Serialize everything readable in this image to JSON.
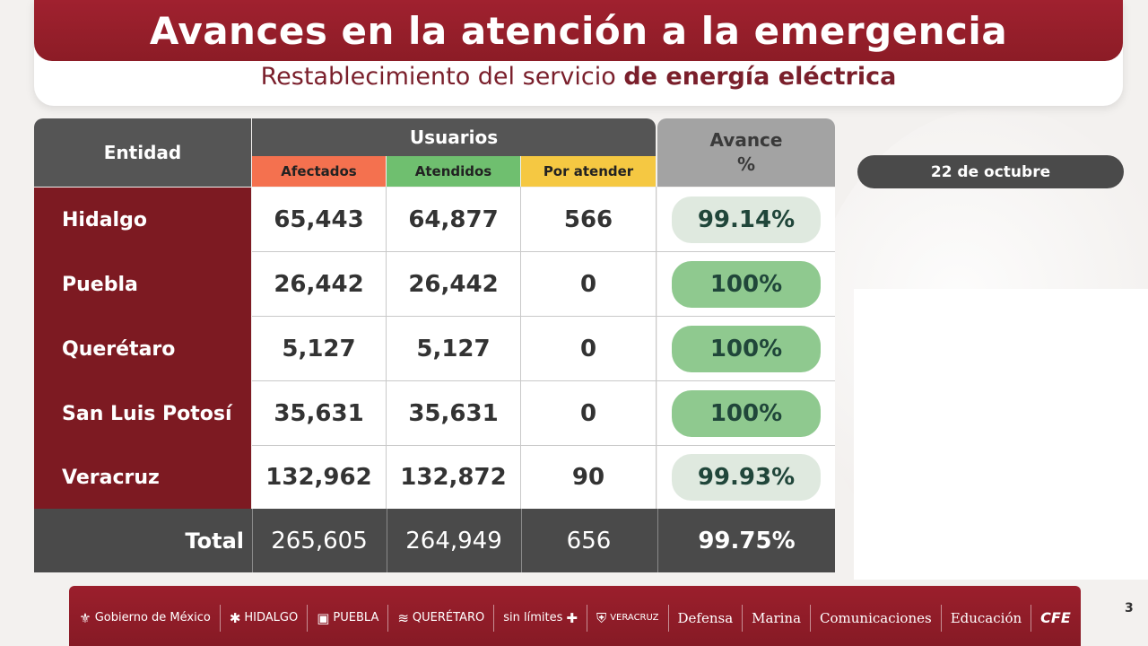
{
  "header": {
    "title": "Avances en la atención a la emergencia",
    "subtitle_regular": "Restablecimiento del servicio",
    "subtitle_bold": "de energía eléctrica"
  },
  "date_label": "22 de octubre",
  "table": {
    "headers": {
      "entidad": "Entidad",
      "usuarios": "Usuarios",
      "afectados": "Afectados",
      "atendidos": "Atendidos",
      "por_atender": "Por atender",
      "avance": "Avance",
      "avance_unit": "%"
    },
    "rows": [
      {
        "entidad": "Hidalgo",
        "afectados": "65,443",
        "atendidos": "64,877",
        "por_atender": "566",
        "avance": "99.14%"
      },
      {
        "entidad": "Puebla",
        "afectados": "26,442",
        "atendidos": "26,442",
        "por_atender": "0",
        "avance": "100%"
      },
      {
        "entidad": "Querétaro",
        "afectados": "5,127",
        "atendidos": "5,127",
        "por_atender": "0",
        "avance": "100%"
      },
      {
        "entidad": "San Luis Potosí",
        "afectados": "35,631",
        "atendidos": "35,631",
        "por_atender": "0",
        "avance": "100%"
      },
      {
        "entidad": "Veracruz",
        "afectados": "132,962",
        "atendidos": "132,872",
        "por_atender": "90",
        "avance": "99.93%"
      }
    ],
    "total": {
      "label": "Total",
      "afectados": "265,605",
      "atendidos": "264,949",
      "por_atender": "656",
      "avance": "99.75%"
    }
  },
  "footer": {
    "logos": [
      {
        "name": "gobierno-de-mexico-logo",
        "text": "Gobierno de México"
      },
      {
        "name": "hidalgo-logo",
        "text": "HIDALGO"
      },
      {
        "name": "puebla-logo",
        "text": "PUEBLA"
      },
      {
        "name": "queretaro-logo",
        "text": "QUERÉTARO"
      },
      {
        "name": "potosi-logo",
        "text": "sin límites"
      },
      {
        "name": "veracruz-logo",
        "text": "VERACRUZ"
      },
      {
        "name": "defensa-logo",
        "text": "Defensa"
      },
      {
        "name": "marina-logo",
        "text": "Marina"
      },
      {
        "name": "comunicaciones-logo",
        "text": "Comunicaciones"
      },
      {
        "name": "educacion-logo",
        "text": "Educación"
      },
      {
        "name": "cfe-logo",
        "text": "CFE"
      }
    ]
  },
  "page_number": "3",
  "colors": {
    "brand_red": "#9b1f2c",
    "entity_red": "#7d1a22",
    "afectados": "#f4714f",
    "atendidos": "#6fbf6f",
    "por_atender": "#f5c842",
    "avance_full": "#8fc98f",
    "avance_partial": "#dfe9df"
  }
}
